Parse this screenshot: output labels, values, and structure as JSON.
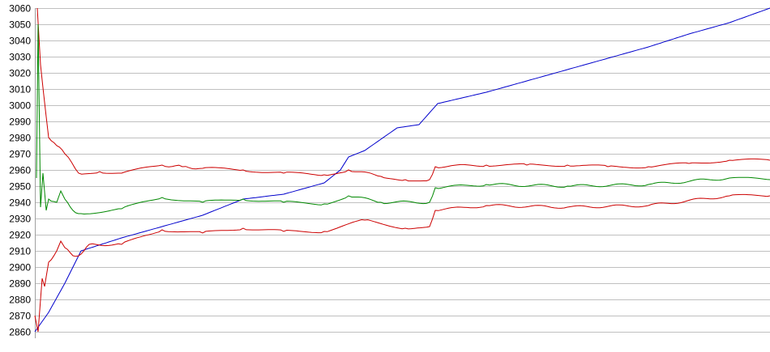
{
  "chart_data": {
    "type": "line",
    "title": "",
    "xlabel": "",
    "ylabel": "",
    "ylim": [
      2860,
      3060
    ],
    "xlim": [
      0,
      907
    ],
    "y_ticks": [
      2860,
      2870,
      2880,
      2890,
      2900,
      2910,
      2920,
      2930,
      2940,
      2950,
      2960,
      2970,
      2980,
      2990,
      3000,
      3010,
      3020,
      3030,
      3040,
      3050,
      3060
    ],
    "grid": "horizontal",
    "legend": "none",
    "series": [
      {
        "color": "#0000cc",
        "points": [
          [
            0,
            2860
          ],
          [
            17,
            2872
          ],
          [
            37,
            2890
          ],
          [
            57,
            2910
          ],
          [
            107,
            2918
          ],
          [
            157,
            2925
          ],
          [
            207,
            2932
          ],
          [
            257,
            2942
          ],
          [
            307,
            2945
          ],
          [
            357,
            2952
          ],
          [
            377,
            2960
          ],
          [
            387,
            2968
          ],
          [
            407,
            2972
          ],
          [
            447,
            2986
          ],
          [
            474,
            2988
          ],
          [
            497,
            3001
          ],
          [
            557,
            3008
          ],
          [
            607,
            3015
          ],
          [
            657,
            3022
          ],
          [
            707,
            3029
          ],
          [
            757,
            3036
          ],
          [
            807,
            3044
          ],
          [
            857,
            3051
          ],
          [
            907,
            3060
          ]
        ]
      },
      {
        "color": "#cc0000",
        "points": [
          [
            3,
            3060
          ],
          [
            7,
            3025
          ],
          [
            17,
            2980
          ],
          [
            27,
            2975
          ],
          [
            37,
            2970
          ],
          [
            54,
            2958
          ],
          [
            80,
            2959
          ],
          [
            107,
            2958
          ],
          [
            157,
            2963
          ],
          [
            182,
            2962
          ],
          [
            207,
            2961
          ],
          [
            257,
            2960
          ],
          [
            307,
            2958
          ],
          [
            357,
            2957
          ],
          [
            387,
            2960
          ],
          [
            427,
            2956
          ],
          [
            457,
            2954
          ],
          [
            487,
            2954
          ],
          [
            494,
            2962
          ],
          [
            557,
            2963
          ],
          [
            607,
            2963
          ],
          [
            657,
            2963
          ],
          [
            707,
            2962
          ],
          [
            757,
            2962
          ],
          [
            807,
            2964
          ],
          [
            857,
            2966
          ],
          [
            907,
            2966
          ]
        ]
      },
      {
        "color": "#008800",
        "points": [
          [
            2,
            2955
          ],
          [
            4,
            3050
          ],
          [
            7,
            2937
          ],
          [
            10,
            2958
          ],
          [
            14,
            2935
          ],
          [
            17,
            2942
          ],
          [
            27,
            2940
          ],
          [
            32,
            2947
          ],
          [
            37,
            2942
          ],
          [
            47,
            2935
          ],
          [
            57,
            2933
          ],
          [
            107,
            2936
          ],
          [
            157,
            2943
          ],
          [
            207,
            2940
          ],
          [
            257,
            2942
          ],
          [
            307,
            2940
          ],
          [
            357,
            2939
          ],
          [
            387,
            2944
          ],
          [
            427,
            2940
          ],
          [
            487,
            2940
          ],
          [
            494,
            2949
          ],
          [
            557,
            2951
          ],
          [
            657,
            2950
          ],
          [
            757,
            2951
          ],
          [
            857,
            2955
          ],
          [
            907,
            2954
          ]
        ]
      },
      {
        "color": "#cc0000",
        "points": [
          [
            0,
            2870
          ],
          [
            4,
            2860
          ],
          [
            9,
            2893
          ],
          [
            12,
            2888
          ],
          [
            17,
            2903
          ],
          [
            27,
            2910
          ],
          [
            32,
            2916
          ],
          [
            37,
            2912
          ],
          [
            47,
            2907
          ],
          [
            57,
            2908
          ],
          [
            67,
            2914
          ],
          [
            107,
            2914
          ],
          [
            157,
            2923
          ],
          [
            207,
            2921
          ],
          [
            257,
            2924
          ],
          [
            307,
            2922
          ],
          [
            357,
            2922
          ],
          [
            407,
            2929
          ],
          [
            457,
            2924
          ],
          [
            487,
            2925
          ],
          [
            494,
            2935
          ],
          [
            557,
            2938
          ],
          [
            657,
            2937
          ],
          [
            757,
            2938
          ],
          [
            857,
            2944
          ],
          [
            907,
            2944
          ]
        ]
      }
    ]
  }
}
